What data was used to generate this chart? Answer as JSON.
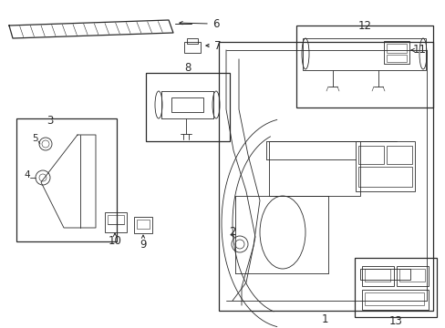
{
  "background_color": "#ffffff",
  "line_color": "#2a2a2a",
  "figsize": [
    4.89,
    3.6
  ],
  "dpi": 100,
  "label_fontsize": 8.5,
  "small_fontsize": 7.5
}
